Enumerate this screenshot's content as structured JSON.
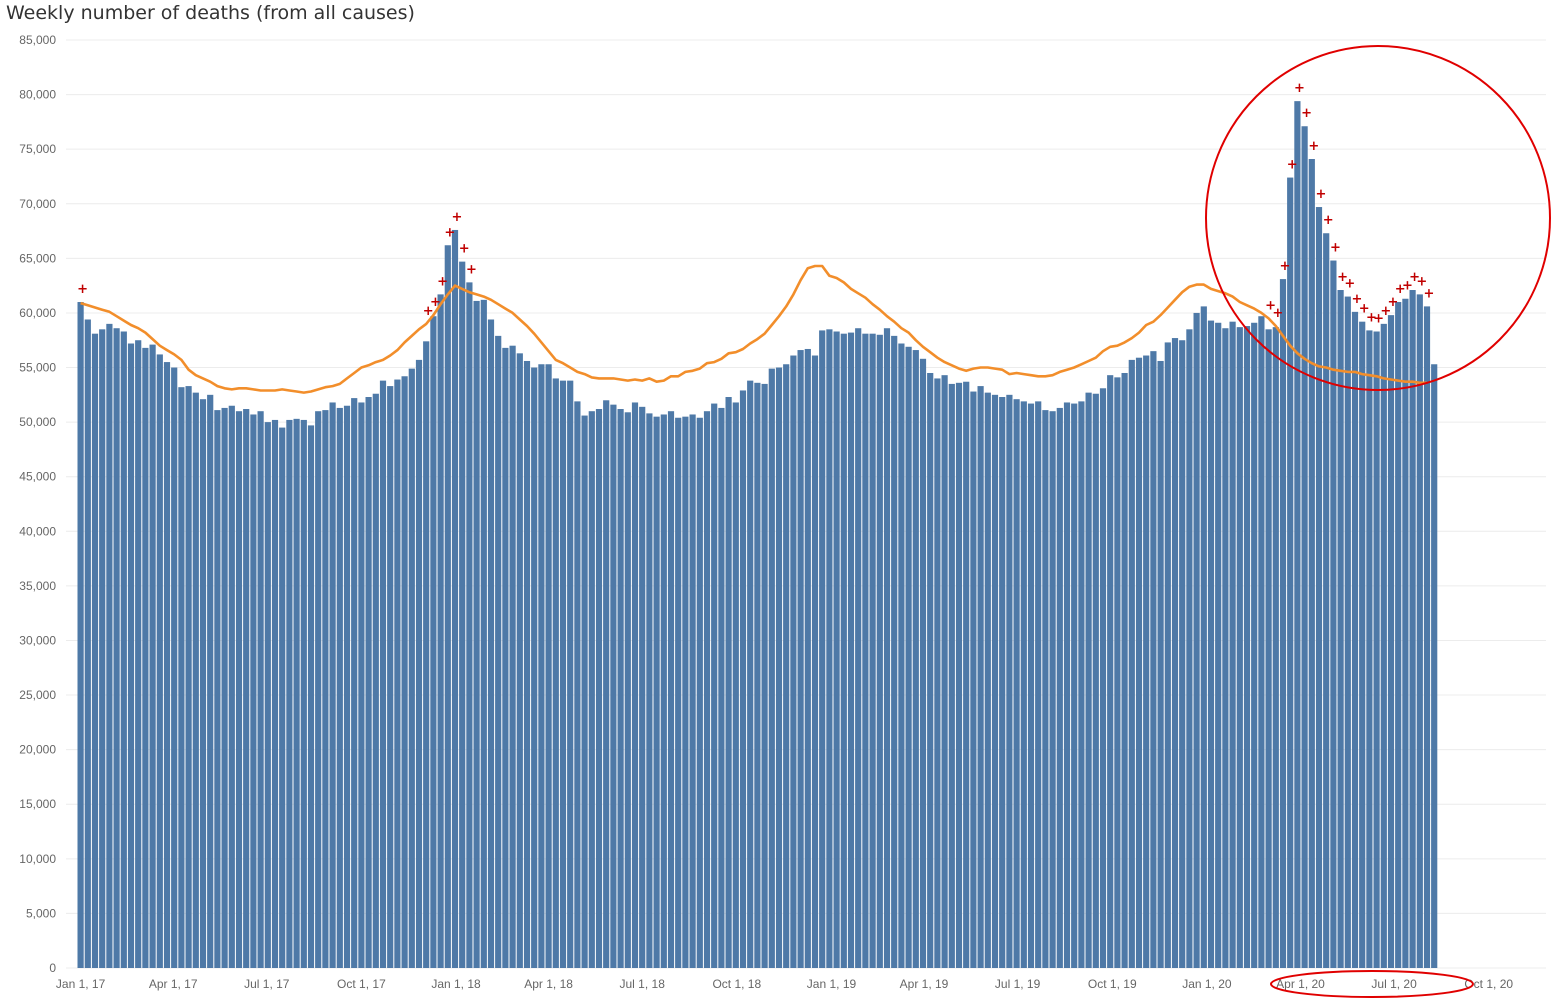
{
  "chart_data": {
    "type": "bar",
    "title": "Weekly number of deaths (from all causes)",
    "xlabel": "",
    "ylabel": "",
    "ylim": [
      0,
      85000
    ],
    "y_ticks": [
      "0",
      "5,000",
      "10,000",
      "15,000",
      "20,000",
      "25,000",
      "30,000",
      "35,000",
      "40,000",
      "45,000",
      "50,000",
      "55,000",
      "60,000",
      "65,000",
      "70,000",
      "75,000",
      "80,000",
      "85,000"
    ],
    "x_ticks": [
      {
        "label": "Jan 1, 17",
        "week": 0
      },
      {
        "label": "Apr 1, 17",
        "week": 12.86
      },
      {
        "label": "Jul 1, 17",
        "week": 25.86
      },
      {
        "label": "Oct 1, 17",
        "week": 39
      },
      {
        "label": "Jan 1, 18",
        "week": 52.14
      },
      {
        "label": "Apr 1, 18",
        "week": 65
      },
      {
        "label": "Jul 1, 18",
        "week": 78
      },
      {
        "label": "Oct 1, 18",
        "week": 91.14
      },
      {
        "label": "Jan 1, 19",
        "week": 104.29
      },
      {
        "label": "Apr 1, 19",
        "week": 117.14
      },
      {
        "label": "Jul 1, 19",
        "week": 130.14
      },
      {
        "label": "Oct 1, 19",
        "week": 143.29
      },
      {
        "label": "Jan 1, 20",
        "week": 156.43
      },
      {
        "label": "Apr 1, 20",
        "week": 169.43
      },
      {
        "label": "Jul 1, 20",
        "week": 182.43
      },
      {
        "label": "Oct 1, 20",
        "week": 195.57
      }
    ],
    "bar_color": "#4e79a7",
    "line_color": "#f28e2b",
    "marker_color": "#c00000",
    "annotation_color": "#e00000",
    "series": [
      {
        "kind": "bars",
        "values": [
          61000,
          59400,
          58100,
          58500,
          59000,
          58600,
          58300,
          57200,
          57500,
          56800,
          57100,
          56200,
          55500,
          55000,
          53200,
          53300,
          52700,
          52100,
          52500,
          51100,
          51300,
          51500,
          51000,
          51200,
          50700,
          51000,
          50000,
          50200,
          49500,
          50200,
          50300,
          50200,
          49700,
          51000,
          51100,
          51800,
          51300,
          51500,
          52200,
          51800,
          52300,
          52600,
          53800,
          53300,
          53900,
          54200,
          54900,
          55700,
          57400,
          59700,
          61700,
          66200,
          67600,
          64700,
          62800,
          61100,
          61200,
          59400,
          57900,
          56800,
          57000,
          56300,
          55600,
          55000,
          55300,
          55300,
          54000,
          53800,
          53800,
          51900,
          50600,
          51000,
          51200,
          52000,
          51600,
          51200,
          50900,
          51800,
          51400,
          50800,
          50500,
          50700,
          51000,
          50400,
          50500,
          50700,
          50400,
          51000,
          51700,
          51300,
          52300,
          51800,
          52900,
          53800,
          53600,
          53500,
          54900,
          55000,
          55300,
          56100,
          56600,
          56700,
          56100,
          58400,
          58500,
          58300,
          58100,
          58200,
          58600,
          58100,
          58100,
          58000,
          58600,
          57900,
          57200,
          56900,
          56600,
          55800,
          54500,
          54000,
          54300,
          53500,
          53600,
          53700,
          52800,
          53300,
          52700,
          52500,
          52300,
          52500,
          52100,
          51900,
          51700,
          51900,
          51100,
          51000,
          51300,
          51800,
          51700,
          51900,
          52700,
          52600,
          53100,
          54300,
          54100,
          54500,
          55700,
          55900,
          56100,
          56500,
          55600,
          57300,
          57700,
          57500,
          58500,
          60000,
          60600,
          59300,
          59100,
          58600,
          59200,
          58700,
          58800,
          59100,
          59700,
          58500,
          58700,
          63100,
          72400,
          79400,
          77100,
          74100,
          69700,
          67300,
          64800,
          62100,
          61500,
          60100,
          59200,
          58400,
          58300,
          59000,
          59800,
          61000,
          61300,
          62100,
          61700,
          60600,
          55300
        ]
      },
      {
        "kind": "line",
        "name": "",
        "values": [
          60900,
          60700,
          60500,
          60300,
          60100,
          59700,
          59300,
          58900,
          58600,
          58200,
          57600,
          57000,
          56600,
          56200,
          55700,
          54800,
          54300,
          54000,
          53700,
          53300,
          53100,
          53000,
          53100,
          53100,
          53000,
          52900,
          52900,
          52900,
          53000,
          52900,
          52800,
          52700,
          52800,
          53000,
          53200,
          53300,
          53500,
          54000,
          54500,
          55000,
          55200,
          55500,
          55700,
          56100,
          56600,
          57300,
          57900,
          58500,
          59000,
          59800,
          60800,
          61700,
          62500,
          62200,
          61900,
          61700,
          61500,
          61200,
          60800,
          60400,
          60000,
          59400,
          58800,
          58100,
          57300,
          56500,
          55700,
          55400,
          55000,
          54600,
          54400,
          54100,
          54000,
          54000,
          54000,
          53900,
          53800,
          53900,
          53800,
          54000,
          53700,
          53800,
          54200,
          54200,
          54600,
          54700,
          54900,
          55400,
          55500,
          55800,
          56300,
          56400,
          56700,
          57200,
          57600,
          58100,
          58900,
          59700,
          60600,
          61700,
          63000,
          64100,
          64300,
          64300,
          63400,
          63200,
          62800,
          62200,
          61800,
          61400,
          60800,
          60300,
          59700,
          59200,
          58600,
          58200,
          57500,
          56900,
          56400,
          55900,
          55500,
          55200,
          54900,
          54700,
          54900,
          55000,
          55000,
          54900,
          54800,
          54400,
          54500,
          54400,
          54300,
          54200,
          54200,
          54300,
          54600,
          54800,
          55000,
          55300,
          55600,
          55900,
          56500,
          56900,
          57000,
          57300,
          57700,
          58200,
          58900,
          59200,
          59800,
          60500,
          61200,
          61900,
          62400,
          62600,
          62600,
          62200,
          62000,
          61800,
          61500,
          61000,
          60700,
          60400,
          60000,
          59500,
          58800,
          57900,
          57000,
          56300,
          55800,
          55400,
          55100,
          55000,
          54800,
          54700,
          54600,
          54600,
          54400,
          54300,
          54200,
          54000,
          53900,
          53800,
          53700,
          53700,
          53600,
          53600
        ]
      }
    ],
    "excess_markers_weeks": [
      0,
      48,
      49,
      50,
      51,
      52,
      53,
      54,
      165,
      166,
      167,
      168,
      169,
      170,
      171,
      172,
      173,
      174,
      175,
      176,
      177,
      178,
      179,
      180,
      181,
      182,
      183,
      184,
      185,
      186,
      187,
      188,
      189,
      190
    ],
    "excess_marker_glyph": "+",
    "annotations": [
      {
        "shape": "circle",
        "around": "Mar–Aug 2020 peak"
      },
      {
        "shape": "ellipse",
        "around": "x-axis labels Apr 1, 20 – Jul 1, 20"
      }
    ]
  }
}
